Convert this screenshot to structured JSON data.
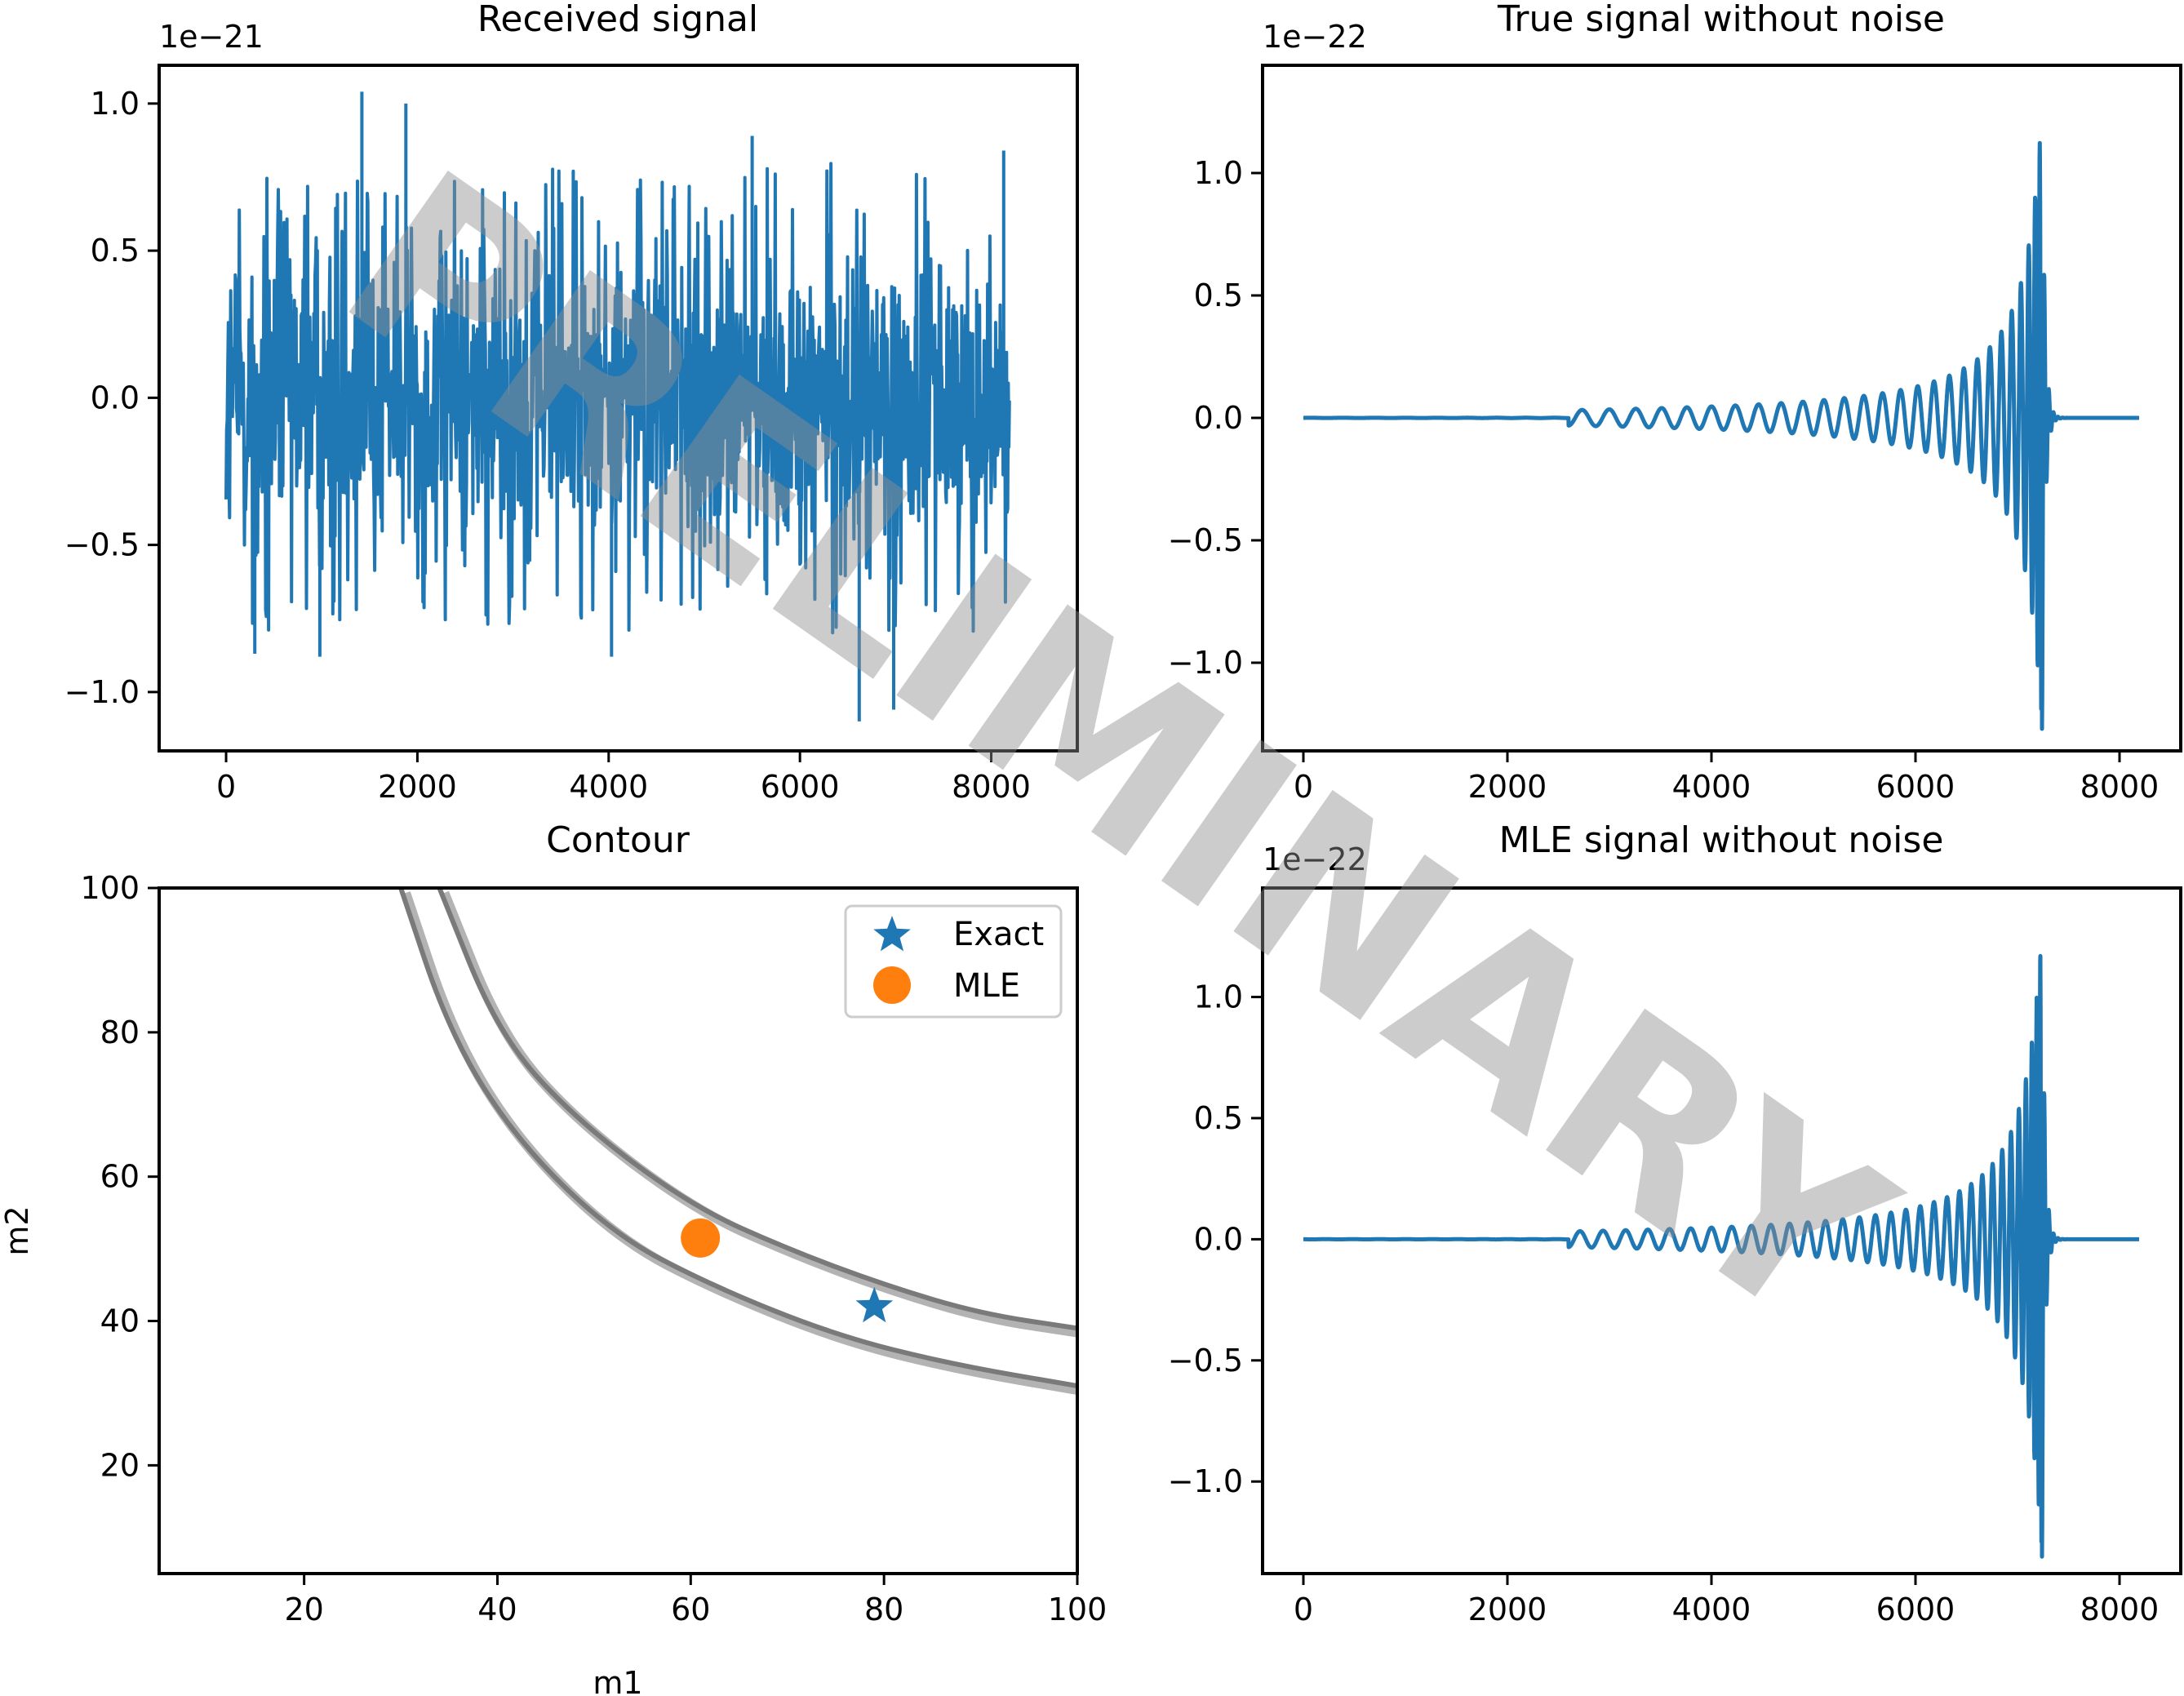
{
  "colors": {
    "series": "#1f77b4",
    "mle_marker": "#ff7f0e",
    "contour_dark": "#7a7a7a",
    "contour_light": "#b3b3b3",
    "watermark": "#8f8f8f"
  },
  "watermark": {
    "text": "PRELIMINARY"
  },
  "chart_data": [
    {
      "id": "received",
      "type": "line",
      "title": "Received signal",
      "offset_label": "1e−21",
      "xlabel": "",
      "ylabel": "",
      "xlim": [
        -700,
        8900
      ],
      "ylim": [
        -1.2,
        1.13
      ],
      "xticks": [
        0,
        2000,
        4000,
        6000,
        8000
      ],
      "xtick_labels": [
        "0",
        "2000",
        "4000",
        "6000",
        "8000"
      ],
      "yticks": [
        -1.0,
        -0.5,
        0.0,
        0.5,
        1.0
      ],
      "ytick_labels": [
        "−1.0",
        "−0.5",
        "0.0",
        "0.5",
        "1.0"
      ],
      "grid": false,
      "series": [
        {
          "description_free": true,
          "n_points": 8192,
          "envelope_note": "noise-dominated, range approx -1.1 to 1.04",
          "peaks": [
            {
              "x": 1420,
              "y": 1.04
            },
            {
              "x": 1880,
              "y": 1.0
            },
            {
              "x": 5500,
              "y": 0.89
            },
            {
              "x": 6620,
              "y": -1.1
            },
            {
              "x": 6980,
              "y": -1.06
            },
            {
              "x": 8130,
              "y": 0.84
            },
            {
              "x": 300,
              "y": -0.87
            },
            {
              "x": 980,
              "y": -0.88
            },
            {
              "x": 4030,
              "y": -0.88
            }
          ]
        }
      ]
    },
    {
      "id": "true_signal",
      "type": "line",
      "title": "True signal without noise",
      "offset_label": "1e−22",
      "xlabel": "",
      "ylabel": "",
      "xlim": [
        -400,
        8600
      ],
      "ylim": [
        -1.36,
        1.44
      ],
      "xticks": [
        0,
        2000,
        4000,
        6000,
        8000
      ],
      "xtick_labels": [
        "0",
        "2000",
        "4000",
        "6000",
        "8000"
      ],
      "yticks": [
        -1.0,
        -0.5,
        0.0,
        0.5,
        1.0
      ],
      "ytick_labels": [
        "−1.0",
        "−0.5",
        "0.0",
        "0.5",
        "1.0"
      ],
      "grid": false,
      "series": [
        {
          "kind": "chirp",
          "x_start": 0,
          "x_end": 8192,
          "merger_x": 7240,
          "peak_amplitude": 1.27,
          "cycles_visible": 22
        }
      ]
    },
    {
      "id": "contour",
      "type": "line",
      "title": "Contour",
      "xlabel": "m1",
      "ylabel": "m2",
      "xlim": [
        5,
        100
      ],
      "ylim": [
        5,
        100
      ],
      "xticks": [
        20,
        40,
        60,
        80,
        100
      ],
      "xtick_labels": [
        "20",
        "40",
        "60",
        "80",
        "100"
      ],
      "yticks": [
        20,
        40,
        60,
        80,
        100
      ],
      "ytick_labels": [
        "20",
        "40",
        "60",
        "80",
        "100"
      ],
      "grid": false,
      "contours": [
        {
          "level": "outer",
          "points": [
            [
              34,
              100
            ],
            [
              40,
              80
            ],
            [
              48,
              68
            ],
            [
              60,
              56
            ],
            [
              70,
              50
            ],
            [
              80,
              45
            ],
            [
              90,
              41
            ],
            [
              100,
              39
            ]
          ]
        },
        {
          "level": "inner",
          "points": [
            [
              30,
              100
            ],
            [
              35,
              80
            ],
            [
              42,
              65
            ],
            [
              52,
              52
            ],
            [
              62,
              45
            ],
            [
              75,
              38
            ],
            [
              87,
              34
            ],
            [
              100,
              31
            ]
          ]
        }
      ],
      "points": [
        {
          "name": "Exact",
          "x": 79,
          "y": 42,
          "marker": "star"
        },
        {
          "name": "MLE",
          "x": 61,
          "y": 51.5,
          "marker": "circle"
        }
      ],
      "legend": {
        "placement": "top-right",
        "entries": [
          "Exact",
          "MLE"
        ]
      }
    },
    {
      "id": "mle_signal",
      "type": "line",
      "title": "MLE signal without noise",
      "offset_label": "1e−22",
      "xlabel": "",
      "ylabel": "",
      "xlim": [
        -400,
        8600
      ],
      "ylim": [
        -1.38,
        1.45
      ],
      "xticks": [
        0,
        2000,
        4000,
        6000,
        8000
      ],
      "xtick_labels": [
        "0",
        "2000",
        "4000",
        "6000",
        "8000"
      ],
      "yticks": [
        -1.0,
        -0.5,
        0.0,
        0.5,
        1.0
      ],
      "ytick_labels": [
        "−1.0",
        "−0.5",
        "0.0",
        "0.5",
        "1.0"
      ],
      "grid": false,
      "series": [
        {
          "kind": "chirp",
          "x_start": 0,
          "x_end": 8192,
          "merger_x": 7240,
          "peak_amplitude": 1.31,
          "cycles_visible": 26
        }
      ]
    }
  ]
}
